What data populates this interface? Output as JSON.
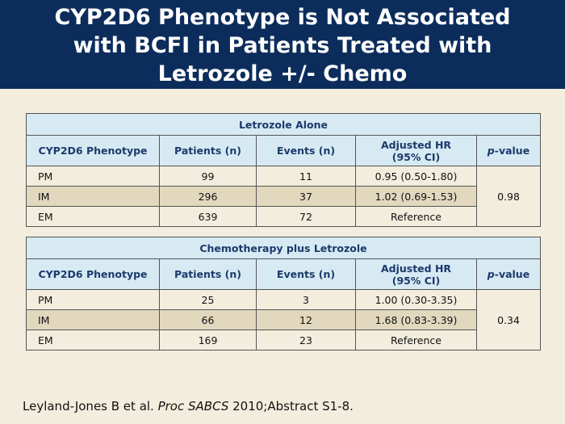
{
  "title": [
    "CYP2D6 Phenotype is Not Associated",
    "with BCFI in Patients Treated with",
    "Letrozole +/- Chemo"
  ],
  "columns": {
    "phenotype": "CYP2D6 Phenotype",
    "patients": "Patients (n)",
    "events": "Events (n)",
    "hr_line1": "Adjusted HR",
    "hr_line2": "(95% CI)",
    "p_italic": "p",
    "p_rest": "-value"
  },
  "tables": [
    {
      "caption": "Letrozole Alone",
      "p_value": "0.98",
      "rows": [
        {
          "phenotype": "PM",
          "patients": "99",
          "events": "11",
          "hr": "0.95 (0.50-1.80)"
        },
        {
          "phenotype": "IM",
          "patients": "296",
          "events": "37",
          "hr": "1.02 (0.69-1.53)"
        },
        {
          "phenotype": "EM",
          "patients": "639",
          "events": "72",
          "hr": "Reference"
        }
      ]
    },
    {
      "caption": "Chemotherapy plus Letrozole",
      "p_value": "0.34",
      "rows": [
        {
          "phenotype": "PM",
          "patients": "25",
          "events": "3",
          "hr": "1.00 (0.30-3.35)"
        },
        {
          "phenotype": "IM",
          "patients": "66",
          "events": "12",
          "hr": "1.68 (0.83-3.39)"
        },
        {
          "phenotype": "EM",
          "patients": "169",
          "events": "23",
          "hr": "Reference"
        }
      ]
    }
  ],
  "citation": {
    "authors": "Leyland-Jones B et al. ",
    "journal": "Proc SABCS",
    "rest": " 2010;Abstract S1-8."
  }
}
